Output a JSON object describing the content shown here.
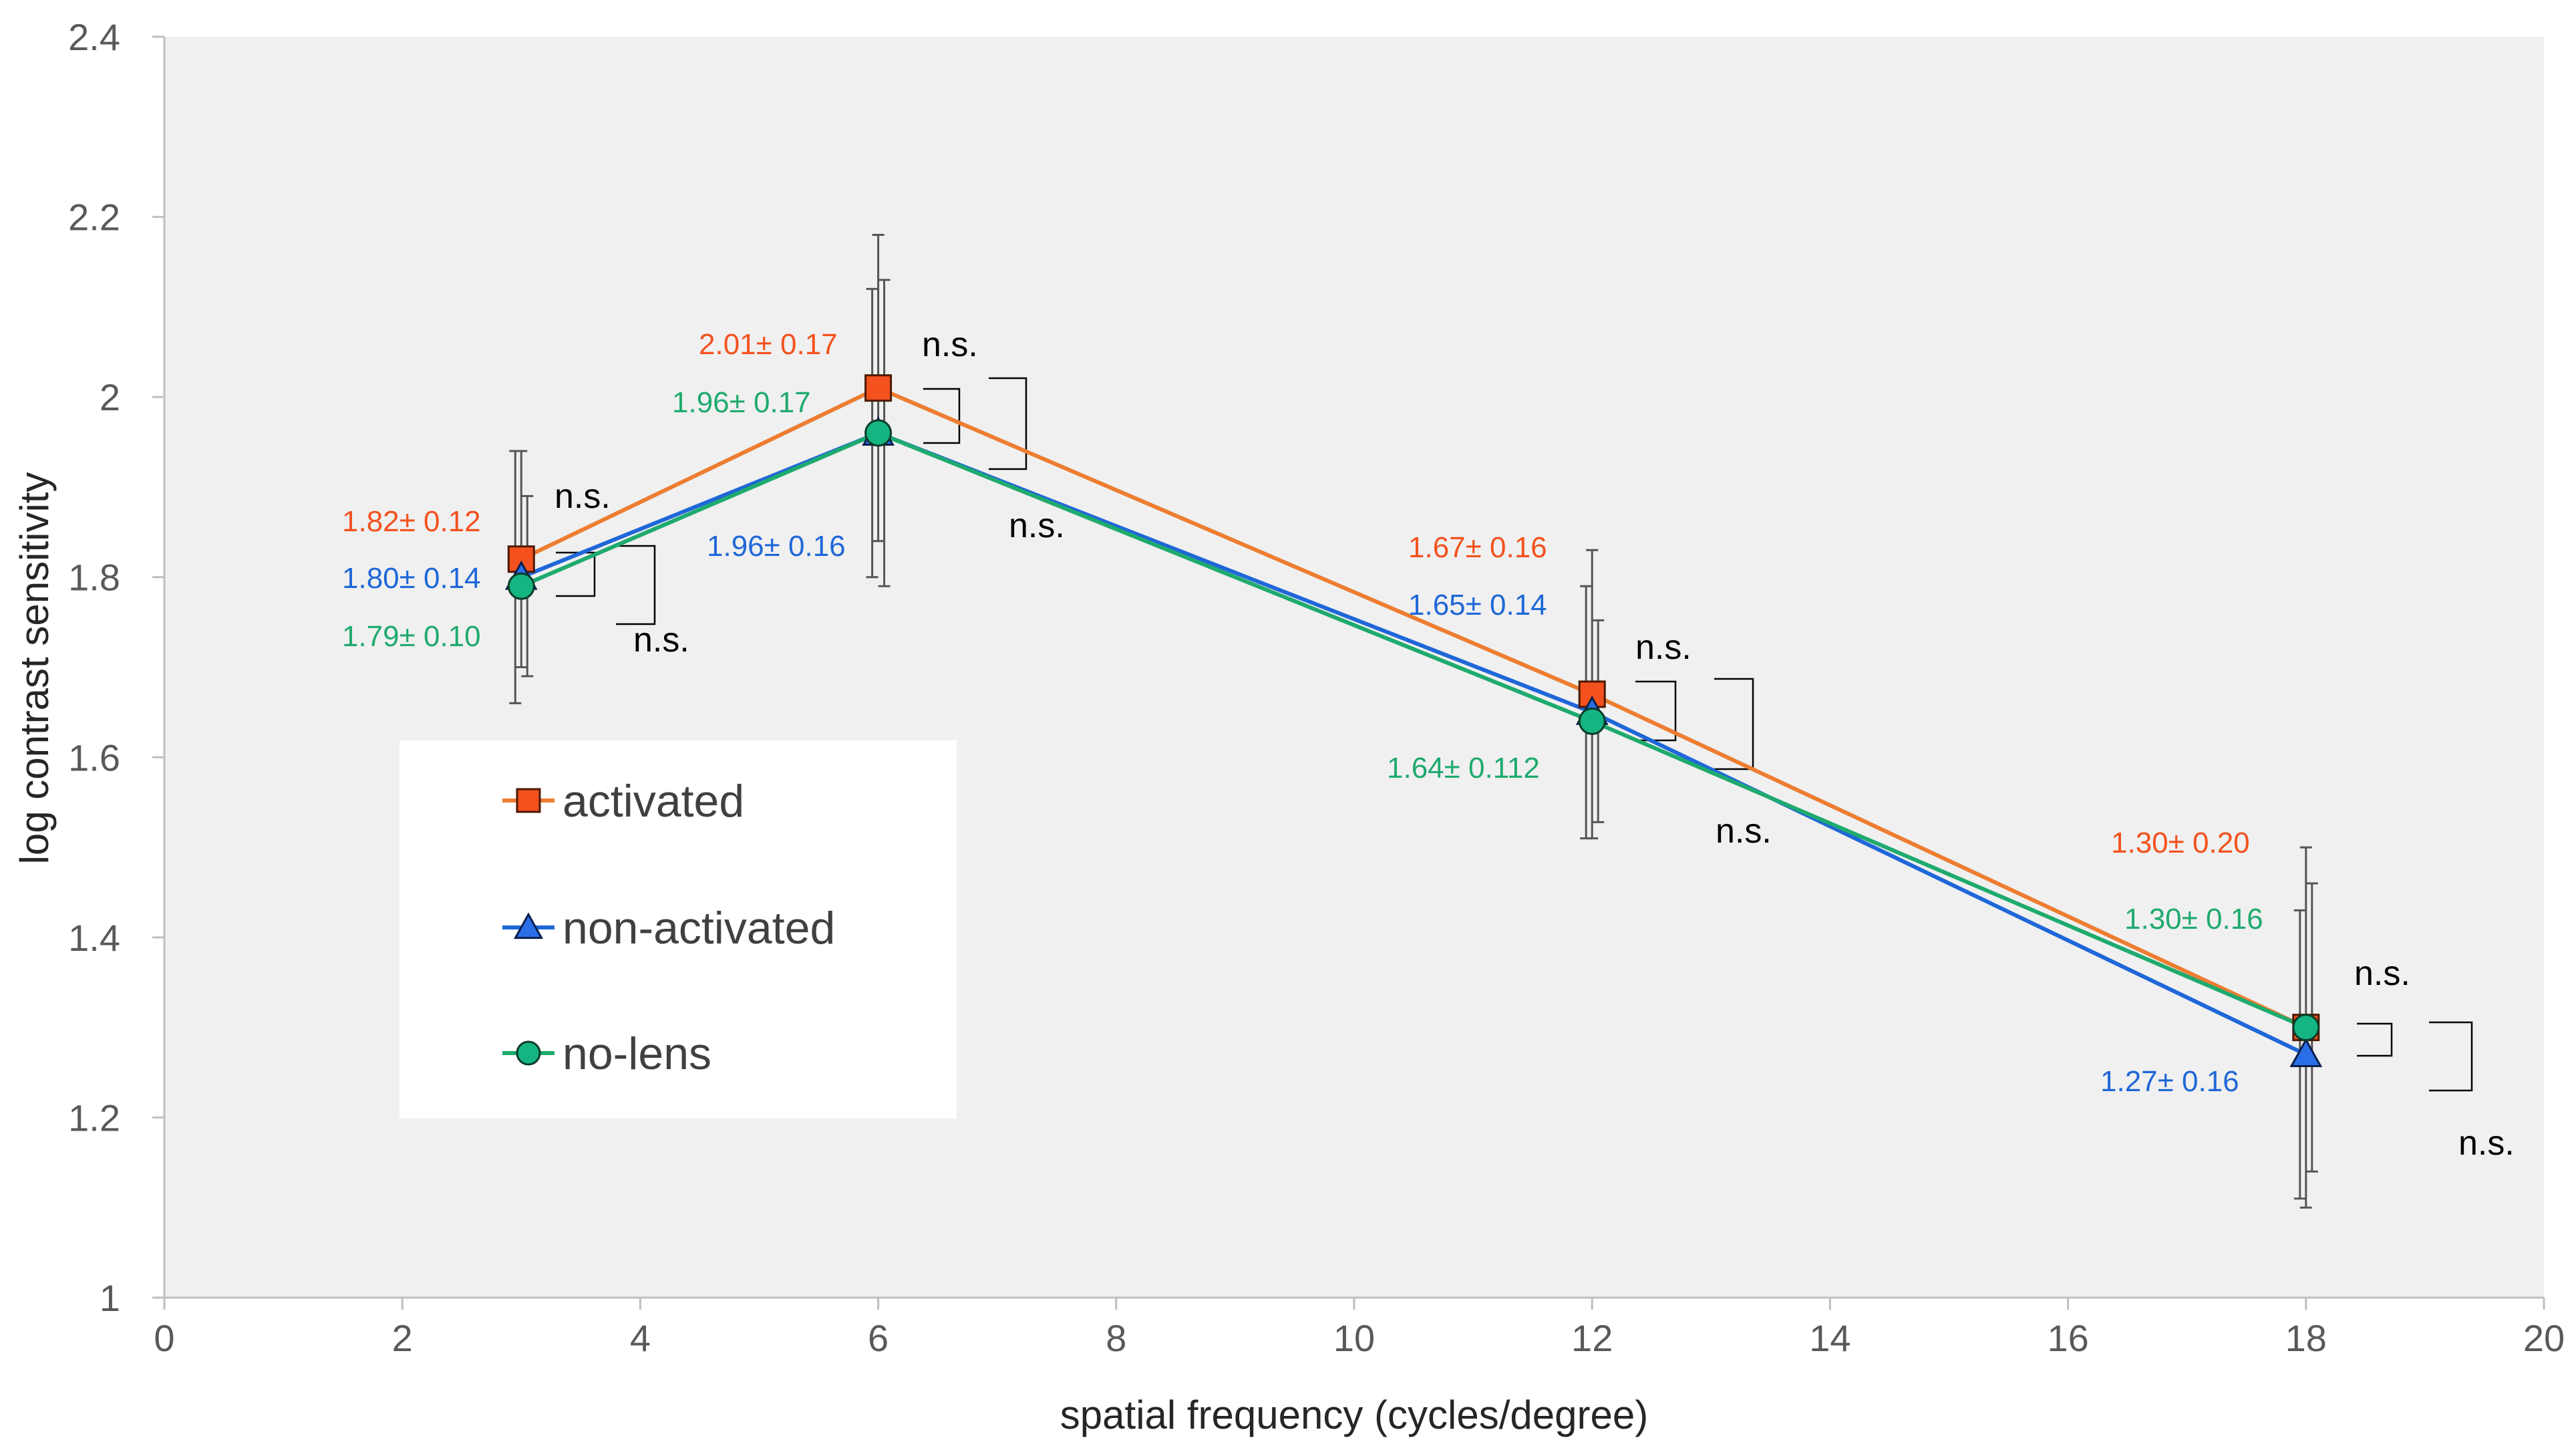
{
  "chart_data": {
    "type": "line",
    "xlabel": "spatial frequency (cycles/degree)",
    "ylabel": "log contrast sensitivity",
    "xlim": [
      0,
      20
    ],
    "ylim": [
      1,
      2.4
    ],
    "x_ticks": [
      "0",
      "2",
      "4",
      "6",
      "8",
      "10",
      "12",
      "14",
      "16",
      "18",
      "20"
    ],
    "y_ticks": [
      "1",
      "1.2",
      "1.4",
      "1.6",
      "1.8",
      "2",
      "2.2",
      "2.4"
    ],
    "grid": false,
    "legend_position": "left-center",
    "x": [
      3,
      6,
      12,
      18
    ],
    "series": [
      {
        "name": "activated",
        "marker": "square",
        "color": "#ED7D31",
        "markerFill": "#F4511E",
        "labelColor": "#F4511E",
        "values": [
          1.82,
          2.01,
          1.67,
          1.3
        ],
        "errors": [
          0.12,
          0.17,
          0.16,
          0.2
        ],
        "labels": [
          "1.82± 0.12",
          "2.01± 0.17",
          "1.67± 0.16",
          "1.30± 0.20"
        ]
      },
      {
        "name": "non-activated",
        "marker": "triangle",
        "color": "#1F67D8",
        "markerFill": "#2A6FE8",
        "labelColor": "#1F67D8",
        "values": [
          1.8,
          1.96,
          1.65,
          1.27
        ],
        "errors": [
          0.14,
          0.16,
          0.14,
          0.16
        ],
        "labels": [
          "1.80± 0.14",
          "1.96± 0.16",
          "1.65± 0.14",
          "1.27± 0.16"
        ]
      },
      {
        "name": "no-lens",
        "marker": "circle",
        "color": "#1FAA6E",
        "markerFill": "#14B582",
        "labelColor": "#1FAA6E",
        "values": [
          1.79,
          1.96,
          1.64,
          1.3
        ],
        "errors": [
          0.1,
          0.17,
          0.112,
          0.16
        ],
        "labels": [
          "1.79± 0.10",
          "1.96± 0.17",
          "1.64± 0.112",
          "1.30± 0.16"
        ]
      }
    ],
    "significance": [
      {
        "x": 3,
        "inner": "n.s.",
        "outer": "n.s."
      },
      {
        "x": 6,
        "inner": "n.s.",
        "outer": "n.s."
      },
      {
        "x": 12,
        "inner": "n.s.",
        "outer": "n.s."
      },
      {
        "x": 18,
        "inner": "n.s.",
        "outer": "n.s."
      }
    ]
  }
}
